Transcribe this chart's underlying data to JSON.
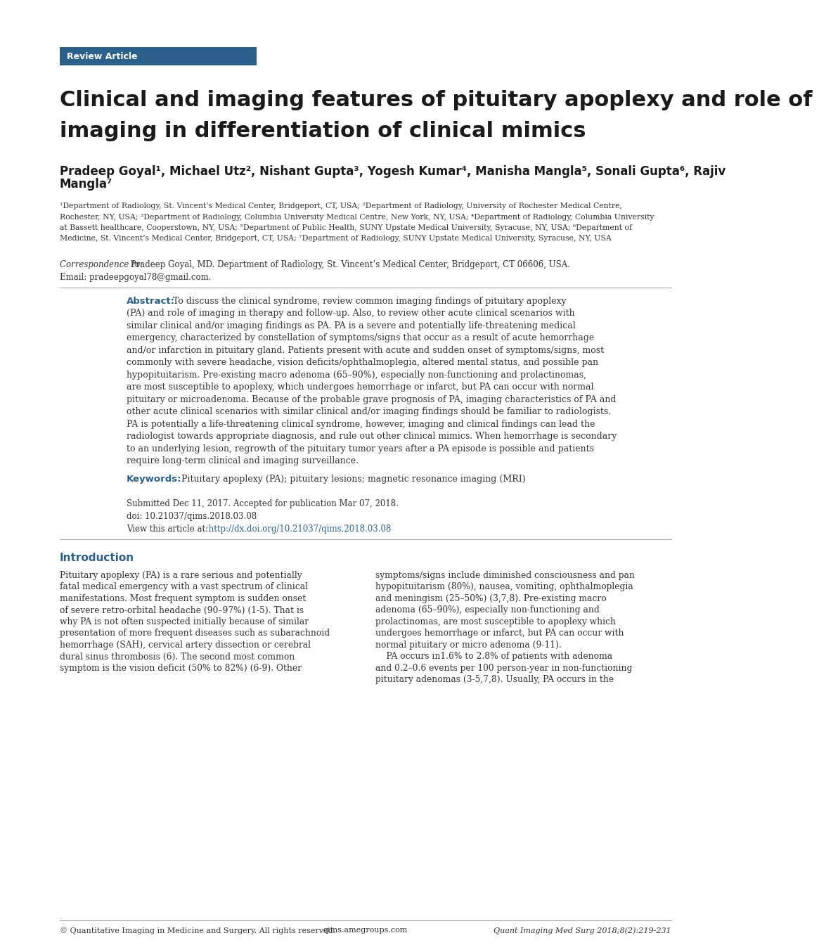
{
  "background_color": "#ffffff",
  "review_article_box_color": "#2c5f8a",
  "review_article_text": "Review Article",
  "review_article_text_color": "#ffffff",
  "title_line1": "Clinical and imaging features of pituitary apoplexy and role of",
  "title_line2": "imaging in differentiation of clinical mimics",
  "title_color": "#1a1a1a",
  "authors_line1": "Pradeep Goyal¹, Michael Utz², Nishant Gupta³, Yogesh Kumar⁴, Manisha Mangla⁵, Sonali Gupta⁶, Rajiv",
  "authors_line2": "Mangla⁷",
  "authors_color": "#1a1a1a",
  "aff_lines": [
    "¹Department of Radiology, St. Vincent’s Medical Center, Bridgeport, CT, USA; ²Department of Radiology, University of Rochester Medical Centre,",
    "Rochester, NY, USA; ³Department of Radiology, Columbia University Medical Centre, New York, NY, USA; ⁴Department of Radiology, Columbia University",
    "at Bassett healthcare, Cooperstown, NY, USA; ⁵Department of Public Health, SUNY Upstate Medical University, Syracuse, NY, USA; ⁶Department of",
    "Medicine, St. Vincent’s Medical Center, Bridgeport, CT, USA; ⁷Department of Radiology, SUNY Upstate Medical University, Syracuse, NY, USA"
  ],
  "affiliations_color": "#333333",
  "correspondence_italic": "Correspondence to:",
  "correspondence_rest": " Pradeep Goyal, MD. Department of Radiology, St. Vincent’s Medical Center, Bridgeport, CT 06606, USA.",
  "email_text": "Email: pradeepgoyal78@gmail.com.",
  "abstract_label": "Abstract:",
  "abstract_lines": [
    "To discuss the clinical syndrome, review common imaging findings of pituitary apoplexy",
    "(PA) and role of imaging in therapy and follow-up. Also, to review other acute clinical scenarios with",
    "similar clinical and/or imaging findings as PA. PA is a severe and potentially life-threatening medical",
    "emergency, characterized by constellation of symptoms/signs that occur as a result of acute hemorrhage",
    "and/or infarction in pituitary gland. Patients present with acute and sudden onset of symptoms/signs, most",
    "commonly with severe headache, vision deficits/ophthalmoplegia, altered mental status, and possible pan",
    "hypopituitarism. Pre-existing macro adenoma (65–90%), especially non-functioning and prolactinomas,",
    "are most susceptible to apoplexy, which undergoes hemorrhage or infarct, but PA can occur with normal",
    "pituitary or microadenoma. Because of the probable grave prognosis of PA, imaging characteristics of PA and",
    "other acute clinical scenarios with similar clinical and/or imaging findings should be familiar to radiologists.",
    "PA is potentially a life-threatening clinical syndrome, however, imaging and clinical findings can lead the",
    "radiologist towards appropriate diagnosis, and rule out other clinical mimics. When hemorrhage is secondary",
    "to an underlying lesion, regrowth of the pituitary tumor years after a PA episode is possible and patients",
    "require long-term clinical and imaging surveillance."
  ],
  "keywords_label": "Keywords:",
  "keywords_text": " Pituitary apoplexy (PA); pituitary lesions; magnetic resonance imaging (MRI)",
  "submitted_text": "Submitted Dec 11, 2017. Accepted for publication Mar 07, 2018.",
  "doi_text": "doi: 10.21037/qims.2018.03.08",
  "view_label": "View this article at:",
  "view_url": " http://dx.doi.org/10.21037/qims.2018.03.08",
  "intro_heading": "Introduction",
  "intro_heading_color": "#2c5f8a",
  "intro_col1_lines": [
    "Pituitary apoplexy (PA) is a rare serious and potentially",
    "fatal medical emergency with a vast spectrum of clinical",
    "manifestations. Most frequent symptom is sudden onset",
    "of severe retro-orbital headache (90–97%) (1-5). That is",
    "why PA is not often suspected initially because of similar",
    "presentation of more frequent diseases such as subarachnoid",
    "hemorrhage (SAH), cervical artery dissection or cerebral",
    "dural sinus thrombosis (6). The second most common",
    "symptom is the vision deficit (50% to 82%) (6-9). Other"
  ],
  "intro_col2_lines": [
    "symptoms/signs include diminished consciousness and pan",
    "hypopituitarism (80%), nausea, vomiting, ophthalmoplegia",
    "and meningism (25–50%) (3,7,8). Pre-existing macro",
    "adenoma (65–90%), especially non-functioning and",
    "prolactinomas, are most susceptible to apoplexy which",
    "undergoes hemorrhage or infarct, but PA can occur with",
    "normal pituitary or micro adenoma (9-11).",
    "    PA occurs in1.6% to 2.8% of patients with adenoma",
    "and 0.2–0.6 events per 100 person-year in non-functioning",
    "pituitary adenomas (3-5,7,8). Usually, PA occurs in the"
  ],
  "footer_copyright": "© Quantitative Imaging in Medicine and Surgery. All rights reserved.",
  "footer_url": "qims.amegroups.com",
  "footer_journal": "Quant Imaging Med Surg 2018;8(2):219-231",
  "footer_color": "#333333",
  "accent_color": "#2c5f8a",
  "divider_color": "#aaaaaa"
}
